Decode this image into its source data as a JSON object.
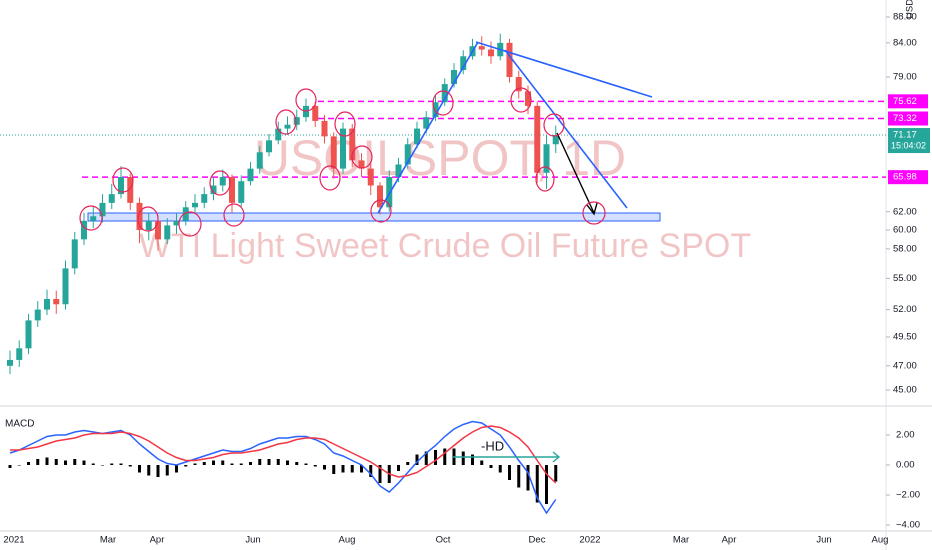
{
  "chart_data": [
    {
      "type": "candlestick",
      "currency": "USD",
      "watermark": [
        "USOILSPOT, 1D",
        "WTI Light Sweet Crude Oil Future SPOT"
      ],
      "time_labels": [
        "2021",
        "Mar",
        "Apr",
        "Jun",
        "Aug",
        "Oct",
        "Dec",
        "2022",
        "Mar",
        "Apr",
        "Jun",
        "Aug"
      ],
      "log_scale": true,
      "ylim": [
        44,
        90
      ],
      "yticks": [
        {
          "value": 88,
          "label": "88.00"
        },
        {
          "value": 84,
          "label": "84.00"
        },
        {
          "value": 79,
          "label": "79.00"
        },
        {
          "value": 62,
          "label": "62.00"
        },
        {
          "value": 60,
          "label": "60.00"
        },
        {
          "value": 58,
          "label": "58.00"
        },
        {
          "value": 55,
          "label": "55.00"
        },
        {
          "value": 52,
          "label": "52.00"
        },
        {
          "value": 49.5,
          "label": "49.50"
        },
        {
          "value": 47,
          "label": "47.00"
        },
        {
          "value": 45,
          "label": "45.00"
        }
      ],
      "levels": [
        {
          "value": 75.62,
          "color": "#ff00ff"
        },
        {
          "value": 73.32,
          "color": "#ff00ff"
        },
        {
          "value": 65.98,
          "color": "#ff00ff"
        }
      ],
      "last_price": {
        "value": 71.17,
        "countdown": "15:04:02",
        "color": "#26a69a"
      },
      "up_color": "#26a69a",
      "down_color": "#ef5350",
      "open": [
        47,
        47.5,
        48.5,
        51,
        52,
        53,
        52.5,
        56,
        59,
        61,
        61.5,
        63,
        64,
        66,
        63,
        60,
        61,
        59,
        60.5,
        61,
        62.5,
        63,
        64,
        65,
        66,
        63,
        65.5,
        67,
        69,
        70.5,
        72,
        72.5,
        73.5,
        75,
        73,
        71,
        67,
        72,
        68,
        67,
        65,
        62.5,
        66,
        67.5,
        70,
        72,
        73.5,
        75.5,
        78,
        80,
        82,
        83.5,
        83,
        82,
        84,
        79,
        77,
        75,
        66.5,
        70
      ],
      "high": [
        48.3,
        49.2,
        51.6,
        52.8,
        53.9,
        53.8,
        56.8,
        59.8,
        61.9,
        62.6,
        64,
        65.2,
        67.3,
        66.4,
        63.6,
        61.9,
        61.6,
        61.3,
        61.8,
        63.2,
        64,
        64.8,
        66,
        66.9,
        66.3,
        66.2,
        67.8,
        69.8,
        71.3,
        72.9,
        73.6,
        74.5,
        76,
        75.6,
        73.8,
        71.5,
        72.8,
        72.6,
        68.9,
        67.6,
        65.4,
        66.8,
        68.3,
        70.8,
        72.9,
        74.3,
        76.4,
        78.8,
        81,
        82.9,
        84.6,
        85,
        84.2,
        85.4,
        84.6,
        79.9,
        77.8,
        75.6,
        71.2,
        72.4
      ],
      "low": [
        46.3,
        46.9,
        48,
        50.4,
        51.5,
        51.6,
        52,
        55.4,
        58.4,
        60.2,
        60.8,
        62.3,
        63.5,
        62.2,
        58.6,
        58.9,
        57.8,
        58.5,
        59.6,
        60.5,
        61.8,
        62.4,
        63.3,
        64.3,
        61.8,
        62.6,
        65,
        66.4,
        68.5,
        70,
        71.2,
        71.8,
        72.9,
        72.2,
        70.1,
        65.8,
        66.4,
        67.2,
        66,
        63.9,
        61.7,
        62,
        65.4,
        67,
        69.5,
        71.4,
        73,
        75,
        77.5,
        79.4,
        81.5,
        82.1,
        80.9,
        81.4,
        78.2,
        76,
        73.9,
        65.3,
        64.6,
        68.9
      ],
      "close": [
        47.5,
        48.5,
        51,
        52,
        53,
        52.5,
        56,
        59,
        61,
        61.5,
        63,
        64,
        66,
        63,
        60,
        61,
        59,
        60.5,
        61,
        62.5,
        63,
        64,
        65,
        66,
        63,
        65.5,
        67,
        69,
        70.5,
        72,
        72.5,
        73.5,
        75,
        73,
        71,
        67,
        72,
        68,
        67,
        65,
        62.5,
        66,
        67.5,
        70,
        72,
        73.5,
        75.5,
        78,
        80,
        82,
        83.5,
        83,
        82,
        84,
        79,
        77,
        75,
        66.5,
        70,
        71.17
      ]
    },
    {
      "type": "macd",
      "title": "MACD",
      "annotation": "-HD",
      "ylim": [
        -4,
        3.6
      ],
      "yticks": [
        {
          "value": 2,
          "label": "2.00"
        },
        {
          "value": 0,
          "label": "0.00"
        },
        {
          "value": -2,
          "label": "−2.00"
        },
        {
          "value": -4,
          "label": "−4.00"
        }
      ],
      "series": [
        {
          "color": "#2962ff",
          "values": [
            0.8,
            1.0,
            1.3,
            1.6,
            1.9,
            2.0,
            2.0,
            2.2,
            2.3,
            2.2,
            2.1,
            2.2,
            2.3,
            2.0,
            1.4,
            0.9,
            0.4,
            0.1,
            0.0,
            0.2,
            0.4,
            0.6,
            0.8,
            1.0,
            0.9,
            0.9,
            1.1,
            1.4,
            1.6,
            1.8,
            1.8,
            1.9,
            1.9,
            1.7,
            1.4,
            0.8,
            0.6,
            0.3,
            0.0,
            -0.6,
            -1.4,
            -1.8,
            -1.2,
            -0.5,
            0.2,
            0.8,
            1.3,
            1.9,
            2.4,
            2.7,
            2.9,
            2.8,
            2.4,
            2.0,
            1.2,
            0.3,
            -0.5,
            -2.2,
            -3.2,
            -2.3
          ]
        },
        {
          "color": "#f23645",
          "values": [
            1.0,
            1.0,
            1.1,
            1.2,
            1.4,
            1.6,
            1.7,
            1.8,
            2.0,
            2.1,
            2.1,
            2.1,
            2.2,
            2.1,
            1.9,
            1.6,
            1.2,
            0.8,
            0.5,
            0.3,
            0.3,
            0.4,
            0.5,
            0.7,
            0.8,
            0.8,
            0.9,
            1.0,
            1.2,
            1.4,
            1.5,
            1.7,
            1.8,
            1.8,
            1.7,
            1.4,
            1.1,
            0.8,
            0.5,
            0.2,
            -0.2,
            -0.6,
            -0.8,
            -0.7,
            -0.5,
            -0.1,
            0.3,
            0.8,
            1.3,
            1.8,
            2.2,
            2.5,
            2.6,
            2.5,
            2.2,
            1.8,
            1.2,
            0.3,
            -0.6,
            -1.2
          ]
        }
      ],
      "histogram": {
        "color": "#000000",
        "values": [
          -0.2,
          0,
          0.2,
          0.4,
          0.5,
          0.4,
          0.3,
          0.4,
          0.3,
          0.1,
          0,
          0.1,
          0.1,
          -0.1,
          -0.5,
          -0.7,
          -0.8,
          -0.7,
          -0.5,
          -0.1,
          0.1,
          0.2,
          0.3,
          0.3,
          0.1,
          0.1,
          0.2,
          0.4,
          0.4,
          0.4,
          0.3,
          0.2,
          0.1,
          -0.1,
          -0.3,
          -0.6,
          -0.5,
          -0.5,
          -0.5,
          -0.8,
          -1.2,
          -1.2,
          -0.4,
          0.2,
          0.7,
          0.9,
          1.0,
          1.1,
          1.1,
          0.9,
          0.7,
          0.3,
          -0.2,
          -0.5,
          -1.0,
          -1.5,
          -1.7,
          -2.5,
          -2.6,
          -1.1
        ]
      }
    }
  ]
}
